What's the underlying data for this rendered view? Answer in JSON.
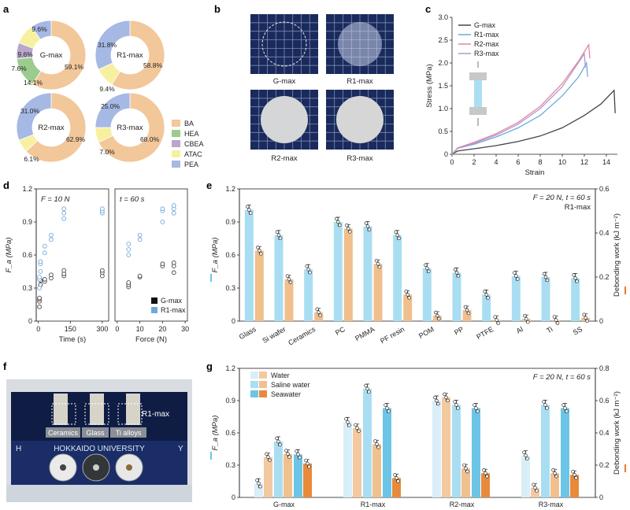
{
  "panel_labels": [
    "a",
    "b",
    "c",
    "d",
    "e",
    "f",
    "g"
  ],
  "colors": {
    "BA": "#f2c79a",
    "HEA": "#9ccb8f",
    "CBEA": "#b9a8cc",
    "ATAC": "#f7f0a0",
    "PEA": "#a6b8e4",
    "gmax": "#444444",
    "r1": "#6fa8dc",
    "r2": "#e8849b",
    "r3": "#b09ad0",
    "blue_bar": "#a9def2",
    "orange_bar": "#f0bf8c",
    "water": "#d8eef8",
    "saline": "#f0c08e",
    "seawater": "#e88a3a",
    "sea_blue": "#6cc5e6",
    "dark_orange": "#e57b2f"
  },
  "chart_data": [
    {
      "id": "a",
      "type": "pie",
      "title": "",
      "legend": [
        "BA",
        "HEA",
        "CBEA",
        "ATAC",
        "PEA"
      ],
      "donuts": [
        {
          "label": "G-max",
          "slices": [
            {
              "name": "BA",
              "value": 59.1,
              "text": "59.1%"
            },
            {
              "name": "HEA",
              "value": 14.1,
              "text": "14.1%"
            },
            {
              "name": "CBEA",
              "value": 7.6,
              "text": "7.6%"
            },
            {
              "name": "ATAC",
              "value": 9.6,
              "text": "9.6%"
            },
            {
              "name": "PEA",
              "value": 9.6,
              "text": "9.6%"
            }
          ]
        },
        {
          "label": "R1-max",
          "slices": [
            {
              "name": "BA",
              "value": 58.8,
              "text": "58.8%"
            },
            {
              "name": "ATAC",
              "value": 9.4,
              "text": "9.4%"
            },
            {
              "name": "PEA",
              "value": 31.8,
              "text": "31.8%"
            }
          ]
        },
        {
          "label": "R2-max",
          "slices": [
            {
              "name": "BA",
              "value": 62.9,
              "text": "62.9%"
            },
            {
              "name": "ATAC",
              "value": 6.1,
              "text": "6.1%"
            },
            {
              "name": "PEA",
              "value": 31.0,
              "text": "31.0%"
            }
          ]
        },
        {
          "label": "R3-max",
          "slices": [
            {
              "name": "BA",
              "value": 68.0,
              "text": "68.0%"
            },
            {
              "name": "ATAC",
              "value": 7.0,
              "text": "7.0%"
            },
            {
              "name": "PEA",
              "value": 25.0,
              "text": "25.0%"
            }
          ]
        }
      ]
    },
    {
      "id": "c",
      "type": "line",
      "xlabel": "Strain",
      "ylabel": "Stress (MPa)",
      "xlim": [
        0,
        15
      ],
      "ylim": [
        0,
        3
      ],
      "xticks": [
        "0",
        "2",
        "4",
        "6",
        "8",
        "10",
        "12",
        "14"
      ],
      "yticks": [
        "0",
        "0.5",
        "1.0",
        "1.5",
        "2.0",
        "2.5",
        "3.0"
      ],
      "series": [
        {
          "name": "G-max",
          "color": "#444444",
          "points": [
            [
              0,
              0
            ],
            [
              0.5,
              0.07
            ],
            [
              2,
              0.12
            ],
            [
              4,
              0.19
            ],
            [
              6,
              0.28
            ],
            [
              8,
              0.4
            ],
            [
              10,
              0.58
            ],
            [
              12,
              0.85
            ],
            [
              13.5,
              1.1
            ],
            [
              14.7,
              1.4
            ],
            [
              14.8,
              0.9
            ]
          ]
        },
        {
          "name": "R1-max",
          "color": "#6fa8dc",
          "points": [
            [
              0,
              0
            ],
            [
              0.5,
              0.13
            ],
            [
              2,
              0.22
            ],
            [
              4,
              0.38
            ],
            [
              6,
              0.58
            ],
            [
              8,
              0.85
            ],
            [
              10,
              1.28
            ],
            [
              11.5,
              1.7
            ],
            [
              12.2,
              2.0
            ],
            [
              12.3,
              1.7
            ]
          ]
        },
        {
          "name": "R2-max",
          "color": "#e8849b",
          "points": [
            [
              0,
              0
            ],
            [
              0.5,
              0.14
            ],
            [
              2,
              0.26
            ],
            [
              4,
              0.45
            ],
            [
              6,
              0.7
            ],
            [
              8,
              1.05
            ],
            [
              10,
              1.55
            ],
            [
              11.5,
              2.05
            ],
            [
              12.4,
              2.4
            ],
            [
              12.5,
              2.1
            ]
          ]
        },
        {
          "name": "R3-max",
          "color": "#b09ad0",
          "points": [
            [
              0,
              0
            ],
            [
              0.5,
              0.13
            ],
            [
              2,
              0.24
            ],
            [
              4,
              0.42
            ],
            [
              6,
              0.66
            ],
            [
              8,
              1.0
            ],
            [
              10,
              1.48
            ],
            [
              11.3,
              1.95
            ],
            [
              12.0,
              2.2
            ],
            [
              12.1,
              1.9
            ]
          ]
        }
      ]
    },
    {
      "id": "d",
      "type": "scatter",
      "ylabel": "F_a (MPa)",
      "ylim": [
        0,
        1.2
      ],
      "yticks": [
        "0",
        "0.3",
        "0.6",
        "0.9",
        "1.2"
      ],
      "annotation_left": "F = 10 N",
      "annotation_right": "t = 60 s",
      "left": {
        "xlabel": "Time (s)",
        "xticks": [
          "0",
          "150",
          "300"
        ],
        "xlim": [
          -10,
          330
        ],
        "gmax": [
          [
            5,
            0.13
          ],
          [
            5,
            0.18
          ],
          [
            5,
            0.2
          ],
          [
            5,
            0.21
          ],
          [
            10,
            0.33
          ],
          [
            10,
            0.37
          ],
          [
            30,
            0.36
          ],
          [
            30,
            0.38
          ],
          [
            60,
            0.39
          ],
          [
            60,
            0.42
          ],
          [
            120,
            0.41
          ],
          [
            120,
            0.43
          ],
          [
            120,
            0.46
          ],
          [
            300,
            0.41
          ],
          [
            300,
            0.44
          ],
          [
            300,
            0.46
          ]
        ],
        "r1": [
          [
            5,
            0.3
          ],
          [
            5,
            0.38
          ],
          [
            5,
            0.4
          ],
          [
            10,
            0.45
          ],
          [
            10,
            0.52
          ],
          [
            10,
            0.54
          ],
          [
            30,
            0.62
          ],
          [
            30,
            0.68
          ],
          [
            60,
            0.74
          ],
          [
            60,
            0.78
          ],
          [
            120,
            0.93
          ],
          [
            120,
            0.98
          ],
          [
            120,
            1.02
          ],
          [
            300,
            0.98
          ],
          [
            300,
            1.0
          ],
          [
            300,
            1.02
          ]
        ]
      },
      "right": {
        "xlabel": "Force (N)",
        "xticks": [
          "0",
          "10",
          "20",
          "30"
        ],
        "xlim": [
          -1,
          31
        ],
        "gmax": [
          [
            5,
            0.31
          ],
          [
            5,
            0.33
          ],
          [
            5,
            0.35
          ],
          [
            10,
            0.4
          ],
          [
            10,
            0.41
          ],
          [
            20,
            0.5
          ],
          [
            20,
            0.52
          ],
          [
            25,
            0.44
          ],
          [
            25,
            0.5
          ],
          [
            25,
            0.53
          ]
        ],
        "r1": [
          [
            5,
            0.6
          ],
          [
            5,
            0.65
          ],
          [
            5,
            0.7
          ],
          [
            10,
            0.74
          ],
          [
            10,
            0.78
          ],
          [
            20,
            0.9
          ],
          [
            20,
            1.0
          ],
          [
            20,
            1.02
          ],
          [
            25,
            0.98
          ],
          [
            25,
            1.02
          ],
          [
            25,
            1.05
          ]
        ]
      },
      "legend": [
        "G-max",
        "R1-max"
      ]
    },
    {
      "id": "e",
      "type": "bar",
      "annotation": "F = 20 N, t = 60 s",
      "annotation2": "R1-max",
      "categories": [
        "Glass",
        "Si wafer",
        "Ceramics",
        "PC",
        "PMMA",
        "PF resin",
        "POM",
        "PP",
        "PTFE",
        "Al",
        "Ti",
        "SS"
      ],
      "ylabel": "F_a (MPa)",
      "ylabel_right": "Debonding work (kJ m⁻²)",
      "ylim": [
        0,
        1.2
      ],
      "ylim_right": [
        0,
        0.6
      ],
      "yticks": [
        "0",
        "0.3",
        "0.6",
        "0.9",
        "1.2"
      ],
      "yticks_right": [
        "0",
        "0.2",
        "0.4",
        "0.6"
      ],
      "series": [
        {
          "name": "Fa",
          "axis": "left",
          "values": [
            1.01,
            0.78,
            0.47,
            0.9,
            0.86,
            0.78,
            0.48,
            0.44,
            0.24,
            0.41,
            0.4,
            0.39
          ]
        },
        {
          "name": "Debonding work",
          "axis": "right",
          "values": [
            0.32,
            0.19,
            0.04,
            0.42,
            0.26,
            0.12,
            0.025,
            0.05,
            0.005,
            0.01,
            0.005,
            0.015
          ]
        }
      ]
    },
    {
      "id": "g",
      "type": "bar",
      "annotation": "F = 20 N, t = 60 s",
      "categories": [
        "G-max",
        "R1-max",
        "R2-max",
        "R3-max"
      ],
      "ylabel": "F_a (MPa)",
      "ylabel_right": "Debonding work (kJ m⁻²)",
      "ylim": [
        0,
        1.2
      ],
      "ylim_right": [
        0,
        0.8
      ],
      "yticks": [
        "0",
        "0.3",
        "0.6",
        "0.9",
        "1.2"
      ],
      "yticks_right": [
        "0",
        "0.2",
        "0.4",
        "0.6",
        "0.8"
      ],
      "legend": [
        "Water",
        "Saline water",
        "Seawater"
      ],
      "series": [
        {
          "name": "Fa Water",
          "axis": "left",
          "values": [
            0.13,
            0.7,
            0.9,
            0.39
          ]
        },
        {
          "name": "Work Water",
          "axis": "right",
          "values": [
            0.25,
            0.43,
            0.62,
            0.06
          ]
        },
        {
          "name": "Fa Saline water",
          "axis": "left",
          "values": [
            0.52,
            1.01,
            0.86,
            0.86
          ]
        },
        {
          "name": "Work Saline water",
          "axis": "right",
          "values": [
            0.27,
            0.33,
            0.18,
            0.15
          ]
        },
        {
          "name": "Fa Seawater",
          "axis": "left",
          "values": [
            0.4,
            0.83,
            0.83,
            0.83
          ]
        },
        {
          "name": "Work Seawater",
          "axis": "right",
          "values": [
            0.21,
            0.12,
            0.15,
            0.14
          ]
        }
      ]
    }
  ],
  "panel_b": {
    "labels": [
      "G-max",
      "R1-max",
      "R2-max",
      "R3-max"
    ]
  },
  "panel_f": {
    "sample_labels": [
      "Ceramics",
      "Glass",
      "Ti alloys"
    ],
    "tag": "R1-max",
    "banner": "HOKKAIDO UNIVERSITY",
    "corner_left": "H",
    "corner_right": "Y"
  }
}
